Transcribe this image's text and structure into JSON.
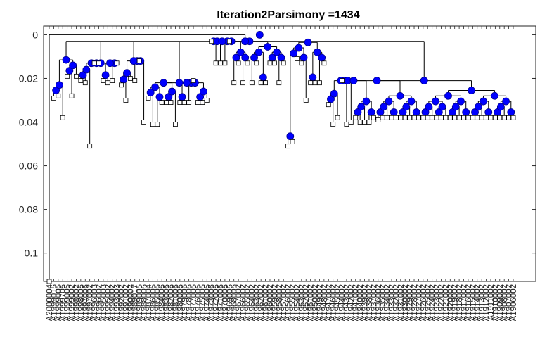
{
  "chart_data": {
    "type": "dendrogram",
    "title": "Iteration2Parsimony =1434",
    "xlabel": "",
    "ylabel": "",
    "y_reversed": true,
    "ylim": [
      -0.004,
      0.113
    ],
    "yticks": [
      0,
      0.02,
      0.04,
      0.06,
      0.08,
      0.1
    ],
    "ytick_labels": [
      "0",
      "0.02",
      "0.04",
      "0.06",
      "0.08",
      "0.1"
    ],
    "grid": false,
    "colors": {
      "internal_node": "#0000ff",
      "leaf_node": "#ffffff",
      "lines": "#000000"
    },
    "leaf_labels": [
      "A2000004",
      "A1999015",
      "A1999005",
      "A1999705",
      "A1999005",
      "A1999002",
      "A1998002",
      "A1998005",
      "A1997005",
      "A1997002",
      "A1996003",
      "A1996002",
      "A1995003",
      "A1995002",
      "A1994002",
      "A1993003",
      "A1992002",
      "A1991002",
      "A1990002",
      "A1989017",
      "A1989005",
      "A1988005",
      "A1987004",
      "A1986005",
      "A1985005",
      "A1984005",
      "A1983005",
      "A1982006",
      "A1981005",
      "A1980005",
      "A1979006",
      "A1978005",
      "A1977005",
      "A1976005",
      "A1975005",
      "A1974005",
      "A1973005",
      "A1972005",
      "A1971005",
      "A1970005",
      "A1969005",
      "A1968005",
      "A1967002",
      "A1966002",
      "A1965002",
      "A1964002",
      "A1963002",
      "A1962002",
      "A1961002",
      "A1960002",
      "A1959002",
      "A1958002",
      "A1957002",
      "A1956002",
      "A1955002",
      "A1954002",
      "A1953002",
      "A1952002",
      "A1951002",
      "A1950002",
      "A1949002",
      "A1948002",
      "A1947002",
      "A1946002",
      "A1945002",
      "A1944002",
      "A1943002",
      "A1942002",
      "A1941002",
      "A1940002",
      "A1939002",
      "A1938002",
      "A1937002",
      "A1936002",
      "A1935002",
      "A1934002",
      "A1933002",
      "A1932002",
      "A1931002",
      "A1930002",
      "A1929002",
      "A1928002",
      "A1927002",
      "A1926002",
      "A1925002",
      "A1924002",
      "A1923002",
      "A1922002",
      "A1921002",
      "A1920002",
      "A1919002",
      "A1918002",
      "A1917002",
      "A1916002",
      "A1915002",
      "A1914002",
      "A1913002",
      "A1912002",
      "A1911002",
      "A1910002",
      "A1909002",
      "A1908002",
      "A1907002",
      "A1906002"
    ],
    "leaf_depths": [
      0.113,
      0.029,
      0.028,
      0.038,
      0.019,
      0.028,
      0.019,
      0.021,
      0.022,
      0.051,
      0.013,
      0.013,
      0.021,
      0.022,
      0.021,
      0.013,
      0.023,
      0.03,
      0.02,
      0.021,
      0.012,
      0.04,
      0.029,
      0.041,
      0.041,
      0.031,
      0.031,
      0.031,
      0.041,
      0.031,
      0.031,
      0.031,
      0.021,
      0.031,
      0.031,
      0.03,
      0.003,
      0.013,
      0.013,
      0.013,
      0.003,
      0.022,
      0.013,
      0.022,
      0.013,
      0.022,
      0.013,
      0.022,
      0.022,
      0.013,
      0.013,
      0.022,
      0.013,
      0.051,
      0.049,
      0.011,
      0.013,
      0.03,
      0.022,
      0.022,
      0.022,
      0.013,
      0.032,
      0.041,
      0.038,
      0.021,
      0.041,
      0.04,
      0.038,
      0.04,
      0.04,
      0.04,
      0.038,
      0.039,
      0.038,
      0.038,
      0.038,
      0.038,
      0.038,
      0.038,
      0.038,
      0.038,
      0.038,
      0.038,
      0.038,
      0.038,
      0.038,
      0.038,
      0.038,
      0.038,
      0.038,
      0.038,
      0.038,
      0.038,
      0.038,
      0.038,
      0.038,
      0.038,
      0.038,
      0.038,
      0.038,
      0.038,
      0.038,
      0.038
    ],
    "groups": [
      {
        "leaves": [
          1,
          6
        ],
        "depth": 0.006
      },
      {
        "leaves": [
          7,
          15
        ],
        "depth": 0.013
      },
      {
        "leaves": [
          16,
          21
        ],
        "depth": 0.012
      },
      {
        "leaves": [
          22,
          35
        ],
        "depth": 0.022
      },
      {
        "leaves": [
          36,
          52
        ],
        "depth": 0.003
      },
      {
        "leaves": [
          53,
          61
        ],
        "depth": 0.003
      },
      {
        "leaves": [
          62,
          103
        ],
        "depth": 0.021
      }
    ]
  }
}
